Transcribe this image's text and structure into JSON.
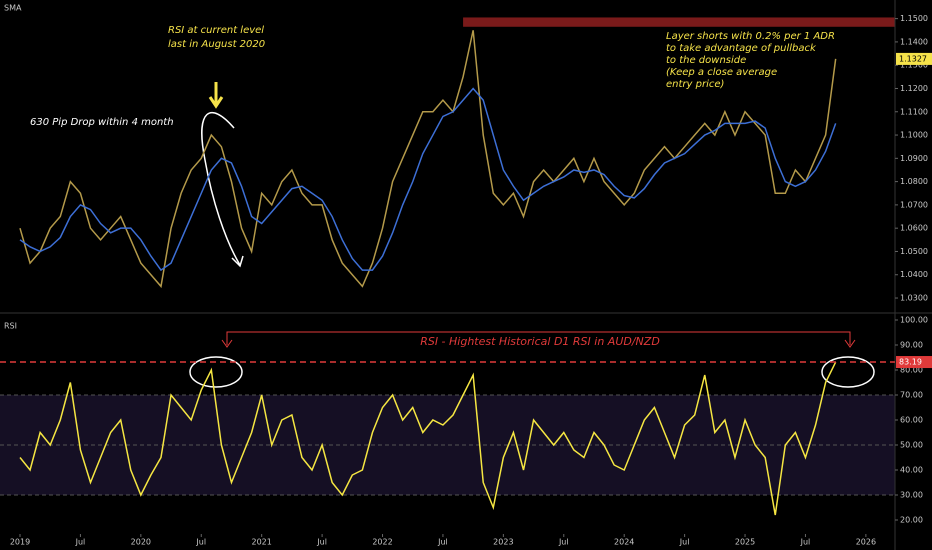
{
  "chart_data": [
    {
      "type": "line",
      "indicator_label": "SMA",
      "x": [
        "2019-01",
        "2019-02",
        "2019-03",
        "2019-04",
        "2019-05",
        "2019-06",
        "2019-07",
        "2019-08",
        "2019-09",
        "2019-10",
        "2019-11",
        "2019-12",
        "2020-01",
        "2020-02",
        "2020-03",
        "2020-04",
        "2020-05",
        "2020-06",
        "2020-07",
        "2020-08",
        "2020-09",
        "2020-10",
        "2020-11",
        "2020-12",
        "2021-01",
        "2021-02",
        "2021-03",
        "2021-04",
        "2021-05",
        "2021-06",
        "2021-07",
        "2021-08",
        "2021-09",
        "2021-10",
        "2021-11",
        "2021-12",
        "2022-01",
        "2022-02",
        "2022-03",
        "2022-04",
        "2022-05",
        "2022-06",
        "2022-07",
        "2022-08",
        "2022-09",
        "2022-10",
        "2022-11",
        "2022-12",
        "2023-01",
        "2023-02",
        "2023-03",
        "2023-04",
        "2023-05",
        "2023-06",
        "2023-07",
        "2023-08",
        "2023-09",
        "2023-10",
        "2023-11",
        "2023-12",
        "2024-01",
        "2024-02",
        "2024-03",
        "2024-04",
        "2024-05",
        "2024-06",
        "2024-07",
        "2024-08",
        "2024-09",
        "2024-10",
        "2024-11",
        "2024-12",
        "2025-01",
        "2025-02",
        "2025-03",
        "2025-04",
        "2025-05",
        "2025-06",
        "2025-07",
        "2025-08",
        "2025-09",
        "2025-10"
      ],
      "series": [
        {
          "color": "#b49a4a",
          "values": [
            1.06,
            1.045,
            1.05,
            1.06,
            1.065,
            1.08,
            1.075,
            1.06,
            1.055,
            1.06,
            1.065,
            1.055,
            1.045,
            1.04,
            1.035,
            1.06,
            1.075,
            1.085,
            1.09,
            1.1,
            1.095,
            1.08,
            1.06,
            1.05,
            1.075,
            1.07,
            1.08,
            1.085,
            1.075,
            1.07,
            1.07,
            1.055,
            1.045,
            1.04,
            1.035,
            1.045,
            1.06,
            1.08,
            1.09,
            1.1,
            1.11,
            1.11,
            1.115,
            1.11,
            1.125,
            1.145,
            1.1,
            1.075,
            1.07,
            1.075,
            1.065,
            1.08,
            1.085,
            1.08,
            1.085,
            1.09,
            1.08,
            1.09,
            1.08,
            1.075,
            1.07,
            1.075,
            1.085,
            1.09,
            1.095,
            1.09,
            1.095,
            1.1,
            1.105,
            1.1,
            1.11,
            1.1,
            1.11,
            1.105,
            1.1,
            1.075,
            1.075,
            1.085,
            1.08,
            1.09,
            1.1,
            1.1327
          ]
        },
        {
          "name": "SMA",
          "color": "#3d6fd6",
          "values": [
            1.055,
            1.052,
            1.05,
            1.052,
            1.056,
            1.065,
            1.07,
            1.068,
            1.062,
            1.058,
            1.06,
            1.06,
            1.055,
            1.048,
            1.042,
            1.045,
            1.055,
            1.065,
            1.075,
            1.085,
            1.09,
            1.088,
            1.078,
            1.065,
            1.062,
            1.067,
            1.072,
            1.077,
            1.078,
            1.075,
            1.072,
            1.065,
            1.055,
            1.047,
            1.042,
            1.042,
            1.048,
            1.058,
            1.07,
            1.08,
            1.092,
            1.1,
            1.108,
            1.11,
            1.115,
            1.12,
            1.115,
            1.1,
            1.085,
            1.078,
            1.072,
            1.075,
            1.078,
            1.08,
            1.082,
            1.085,
            1.084,
            1.085,
            1.083,
            1.078,
            1.074,
            1.073,
            1.077,
            1.083,
            1.088,
            1.09,
            1.092,
            1.096,
            1.1,
            1.102,
            1.105,
            1.105,
            1.105,
            1.106,
            1.103,
            1.09,
            1.08,
            1.078,
            1.08,
            1.085,
            1.093,
            1.105
          ]
        }
      ],
      "ylim": [
        1.024,
        1.158
      ],
      "yticks": [
        {
          "value": 1.03,
          "label": "1.0300"
        },
        {
          "value": 1.04,
          "label": "1.0400"
        },
        {
          "value": 1.05,
          "label": "1.0500"
        },
        {
          "value": 1.06,
          "label": "1.0600"
        },
        {
          "value": 1.07,
          "label": "1.0700"
        },
        {
          "value": 1.08,
          "label": "1.0800"
        },
        {
          "value": 1.09,
          "label": "1.0900"
        },
        {
          "value": 1.1,
          "label": "1.1000"
        },
        {
          "value": 1.11,
          "label": "1.1100"
        },
        {
          "value": 1.12,
          "label": "1.1200"
        },
        {
          "value": 1.13,
          "label": "1.1300"
        },
        {
          "value": 1.14,
          "label": "1.1400"
        },
        {
          "value": 1.15,
          "label": "1.1500"
        }
      ],
      "resistance_zone": {
        "from": "2022-09",
        "range": [
          1.1465,
          1.1505
        ],
        "color": "#7a1a1a"
      },
      "annotations": [
        {
          "lines": [
            "RSI at current level",
            "last in August 2020"
          ]
        },
        {
          "lines": [
            "630 Pip Drop within 4 month"
          ]
        },
        {
          "lines": [
            "Layer shorts with 0.2% per 1 ADR",
            "to take advantage of pullback",
            "to the downside",
            "(Keep a close average",
            "entry price)"
          ]
        }
      ]
    },
    {
      "type": "line",
      "indicator_label": "RSI",
      "series": [
        {
          "color": "#f5e642",
          "values": [
            45,
            40,
            55,
            50,
            60,
            75,
            48,
            35,
            45,
            55,
            60,
            40,
            30,
            38,
            45,
            70,
            65,
            60,
            72,
            80,
            50,
            35,
            45,
            55,
            70,
            50,
            60,
            62,
            45,
            40,
            50,
            35,
            30,
            38,
            40,
            55,
            65,
            70,
            60,
            65,
            55,
            60,
            58,
            62,
            70,
            78,
            35,
            25,
            45,
            55,
            40,
            60,
            55,
            50,
            55,
            48,
            45,
            55,
            50,
            42,
            40,
            50,
            60,
            65,
            55,
            45,
            58,
            62,
            78,
            55,
            60,
            45,
            60,
            50,
            45,
            22,
            50,
            55,
            45,
            58,
            75,
            83.19
          ]
        }
      ],
      "ylim": [
        14.4,
        102.4
      ],
      "yticks": [
        {
          "value": 20,
          "label": "20.00"
        },
        {
          "value": 30,
          "label": "30.00"
        },
        {
          "value": 40,
          "label": "40.00"
        },
        {
          "value": 50,
          "label": "50.00"
        },
        {
          "value": 60,
          "label": "60.00"
        },
        {
          "value": 70,
          "label": "70.00"
        },
        {
          "value": 80,
          "label": "80.00"
        },
        {
          "value": 90,
          "label": "90.00"
        },
        {
          "value": 100,
          "label": "100.00"
        }
      ],
      "levels": [
        30,
        50,
        70
      ],
      "annotation": "RSI - Hightest Historical D1 RSI in AUD/NZD",
      "xticks": [
        {
          "value": "2019-01",
          "label": "2019"
        },
        {
          "value": "2019-07",
          "label": "Jul"
        },
        {
          "value": "2020-01",
          "label": "2020"
        },
        {
          "value": "2020-07",
          "label": "Jul"
        },
        {
          "value": "2021-01",
          "label": "2021"
        },
        {
          "value": "2021-07",
          "label": "Jul"
        },
        {
          "value": "2022-01",
          "label": "2022"
        },
        {
          "value": "2022-07",
          "label": "Jul"
        },
        {
          "value": "2023-01",
          "label": "2023"
        },
        {
          "value": "2023-07",
          "label": "Jul"
        },
        {
          "value": "2024-01",
          "label": "2024"
        },
        {
          "value": "2024-07",
          "label": "Jul"
        },
        {
          "value": "2025-01",
          "label": "2025"
        },
        {
          "value": "2025-07",
          "label": "Jul"
        },
        {
          "value": "2026-01",
          "label": "2026"
        }
      ]
    }
  ]
}
